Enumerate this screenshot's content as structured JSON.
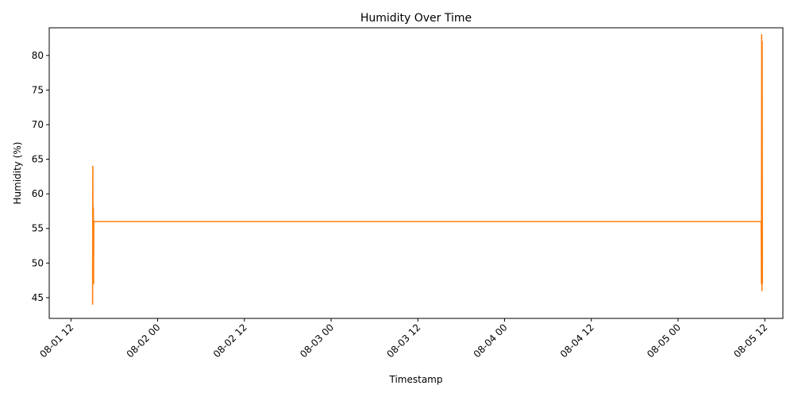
{
  "chart_data": {
    "type": "line",
    "title": "Humidity Over Time",
    "xlabel": "Timestamp",
    "ylabel": "Humidity (%)",
    "xlim": [
      "2024-08-01 09:00",
      "2024-08-05 14:30"
    ],
    "ylim": [
      42,
      84
    ],
    "x_ticks": [
      {
        "t": "2024-08-01 12:00",
        "label": "08-01 12"
      },
      {
        "t": "2024-08-02 00:00",
        "label": "08-02 00"
      },
      {
        "t": "2024-08-02 12:00",
        "label": "08-02 12"
      },
      {
        "t": "2024-08-03 00:00",
        "label": "08-03 00"
      },
      {
        "t": "2024-08-03 12:00",
        "label": "08-03 12"
      },
      {
        "t": "2024-08-04 00:00",
        "label": "08-04 00"
      },
      {
        "t": "2024-08-04 12:00",
        "label": "08-04 12"
      },
      {
        "t": "2024-08-05 00:00",
        "label": "08-05 00"
      },
      {
        "t": "2024-08-05 12:00",
        "label": "08-05 12"
      }
    ],
    "y_ticks": [
      45,
      50,
      55,
      60,
      65,
      70,
      75,
      80
    ],
    "grid": false,
    "legend": "none",
    "series": [
      {
        "color": "#ff7f0e",
        "points": [
          {
            "t": "2024-08-01 15:00",
            "y": 44
          },
          {
            "t": "2024-08-01 15:02",
            "y": 64
          },
          {
            "t": "2024-08-01 15:04",
            "y": 48
          },
          {
            "t": "2024-08-01 15:06",
            "y": 58
          },
          {
            "t": "2024-08-01 15:08",
            "y": 47
          },
          {
            "t": "2024-08-01 15:10",
            "y": 56
          },
          {
            "t": "2024-08-05 11:30",
            "y": 56
          },
          {
            "t": "2024-08-05 11:32",
            "y": 47
          },
          {
            "t": "2024-08-05 11:34",
            "y": 83
          },
          {
            "t": "2024-08-05 11:36",
            "y": 46
          },
          {
            "t": "2024-08-05 11:38",
            "y": 82
          },
          {
            "t": "2024-08-05 11:40",
            "y": 47
          }
        ]
      }
    ]
  }
}
